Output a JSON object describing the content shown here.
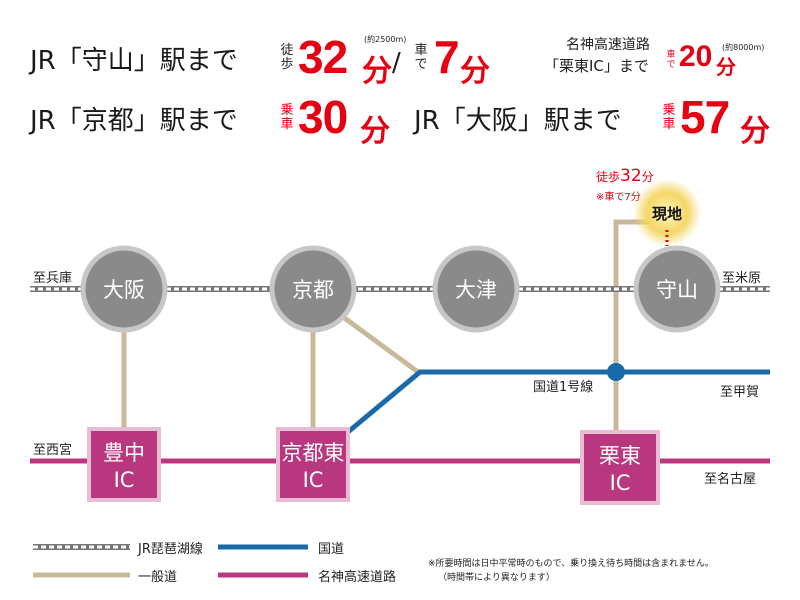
{
  "header": {
    "line1": {
      "prefix": "JR「守山」駅まで",
      "walk_mode": "徒歩",
      "walk_value": "32",
      "walk_unit": "分",
      "walk_note": "(約2500m)",
      "slash": "/",
      "car_mode": "車で",
      "car_value": "7",
      "car_unit": "分"
    },
    "ic": {
      "title": "名神高速道路",
      "prefix": "「栗東IC」まで",
      "mode": "車で",
      "value": "20",
      "unit": "分",
      "note": "(約8000m)"
    },
    "line2": {
      "kyoto_prefix": "JR「京都」駅まで",
      "kyoto_mode": "乗車",
      "kyoto_value": "30",
      "kyoto_unit": "分",
      "osaka_prefix": "JR「大阪」駅まで",
      "osaka_mode": "乗車",
      "osaka_value": "57",
      "osaka_unit": "分"
    }
  },
  "map": {
    "stations": [
      "大阪",
      "京都",
      "大津",
      "守山"
    ],
    "ics": [
      {
        "line1": "豊中",
        "line2": "IC"
      },
      {
        "line1": "京都東",
        "line2": "IC"
      },
      {
        "line1": "栗東",
        "line2": "IC"
      }
    ],
    "site": {
      "label": "現地",
      "walk_text": "徒歩",
      "walk_value": "32",
      "walk_unit": "分",
      "car_note": "※車で7分"
    },
    "labels": {
      "hyogo": "至兵庫",
      "maibara": "至米原",
      "nishinomiya": "至西宮",
      "kouka": "至甲賀",
      "nagoya": "至名古屋",
      "route1": "国道1号線"
    },
    "colors": {
      "jr": "#a0a0a0",
      "local_road": "#c8b99a",
      "national_road": "#1a6aaa",
      "expressway": "#b8377f",
      "accent": "#e60012"
    }
  },
  "legend": {
    "jr": "JR琵琶湖線",
    "local_road": "一般道",
    "national_road": "国道",
    "expressway": "名神高速道路"
  },
  "footnote": {
    "line1": "※所要時間は日中平常時のもので、乗り換え待ち時間は含まれません。",
    "line2": "（時間帯により異なります）"
  }
}
